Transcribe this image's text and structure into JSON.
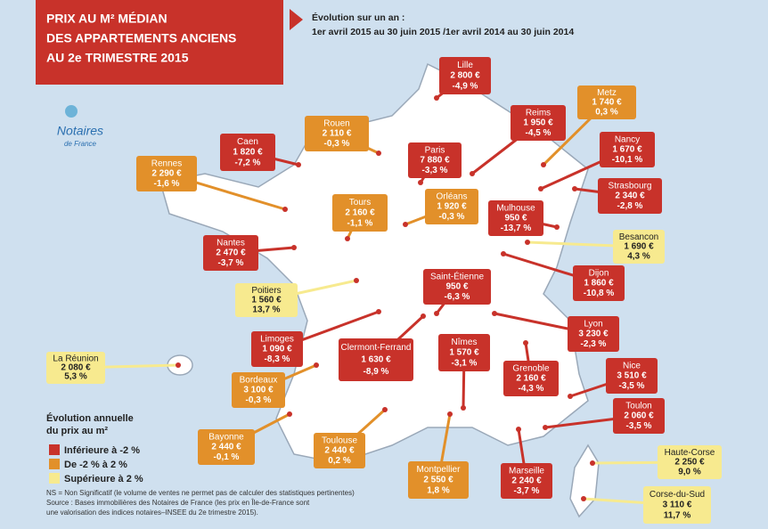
{
  "header": {
    "title_lines": [
      "PRIX AU M² MÉDIAN",
      "DES APPARTEMENTS ANCIENS",
      "AU 2e TRIMESTRE 2015"
    ],
    "subtitle_lines": [
      "Évolution sur un an :",
      "1er avril 2015 au 30 juin 2015 /1er avril 2014 au 30 juin 2014"
    ]
  },
  "logo": {
    "name": "Notaires",
    "tagline": "de France"
  },
  "cities": [
    {
      "name": "Lille",
      "price": "2 800 €",
      "change": "-4,9 %",
      "color": "#c8322a"
    },
    {
      "name": "Metz",
      "price": "1 740 €",
      "change": "0,3 %",
      "color": "#e2902a"
    },
    {
      "name": "Reims",
      "price": "1 950 €",
      "change": "-4,5 %",
      "color": "#c8322a"
    },
    {
      "name": "Rouen",
      "price": "2 110 €",
      "change": "-0,3 %",
      "color": "#e2902a"
    },
    {
      "name": "Caen",
      "price": "1 820 €",
      "change": "-7,2 %",
      "color": "#c8322a"
    },
    {
      "name": "Paris",
      "price": "7 880 €",
      "change": "-3,3 %",
      "color": "#c8322a"
    },
    {
      "name": "Nancy",
      "price": "1 670 €",
      "change": "-10,1 %",
      "color": "#c8322a"
    },
    {
      "name": "Rennes",
      "price": "2 290 €",
      "change": "-1,6 %",
      "color": "#e2902a"
    },
    {
      "name": "Strasbourg",
      "price": "2 340 €",
      "change": "-2,8 %",
      "color": "#c8322a"
    },
    {
      "name": "Tours",
      "price": "2 160 €",
      "change": "-1,1 %",
      "color": "#e2902a"
    },
    {
      "name": "Orléans",
      "price": "1 920 €",
      "change": "-0,3 %",
      "color": "#e2902a"
    },
    {
      "name": "Mulhouse",
      "price": "950 €",
      "change": "-13,7 %",
      "color": "#c8322a"
    },
    {
      "name": "Besancon",
      "price": "1 690 €",
      "change": "4,3 %",
      "color": "#f7ea8f"
    },
    {
      "name": "Nantes",
      "price": "2 470 €",
      "change": "-3,7 %",
      "color": "#c8322a"
    },
    {
      "name": "Dijon",
      "price": "1 860 €",
      "change": "-10,8 %",
      "color": "#c8322a"
    },
    {
      "name": "Poitiers",
      "price": "1 560 €",
      "change": "13,7 %",
      "color": "#f7ea8f"
    },
    {
      "name": "Saint-Étienne",
      "price": "950 €",
      "change": "-6,3 %",
      "color": "#c8322a"
    },
    {
      "name": "Lyon",
      "price": "3 230 €",
      "change": "-2,3 %",
      "color": "#c8322a"
    },
    {
      "name": "Limoges",
      "price": "1 090 €",
      "change": "-8,3 %",
      "color": "#c8322a"
    },
    {
      "name": "Clermont-Ferrand",
      "price": "1 630 €",
      "change": "-8,9 %",
      "color": "#c8322a"
    },
    {
      "name": "Nîmes",
      "price": "1 570 €",
      "change": "-3,1 %",
      "color": "#c8322a"
    },
    {
      "name": "La Réunion",
      "price": "2 080 €",
      "change": "5,3 %",
      "color": "#f7ea8f"
    },
    {
      "name": "Bordeaux",
      "price": "3 100 €",
      "change": "-0,3 %",
      "color": "#e2902a"
    },
    {
      "name": "Grenoble",
      "price": "2 160 €",
      "change": "-4,3 %",
      "color": "#c8322a"
    },
    {
      "name": "Nice",
      "price": "3 510 €",
      "change": "-3,5 %",
      "color": "#c8322a"
    },
    {
      "name": "Toulon",
      "price": "2 060 €",
      "change": "-3,5 %",
      "color": "#c8322a"
    },
    {
      "name": "Bayonne",
      "price": "2 440 €",
      "change": "-0,1 %",
      "color": "#e2902a"
    },
    {
      "name": "Toulouse",
      "price": "2 440 €",
      "change": "0,2 %",
      "color": "#e2902a"
    },
    {
      "name": "Montpellier",
      "price": "2 550 €",
      "change": "1,8 %",
      "color": "#e2902a"
    },
    {
      "name": "Marseille",
      "price": "2 240 €",
      "change": "-3,7 %",
      "color": "#c8322a"
    },
    {
      "name": "Haute-Corse",
      "price": "2 250 €",
      "change": "9,0 %",
      "color": "#f7ea8f"
    },
    {
      "name": "Corse-du-Sud",
      "price": "3 110 €",
      "change": "11,7 %",
      "color": "#f7ea8f"
    }
  ],
  "legend": {
    "title_lines": [
      "Évolution annuelle",
      "du prix au m²"
    ],
    "items": [
      {
        "label": "Inférieure à -2 %",
        "color": "#c8322a"
      },
      {
        "label": "De -2 % à 2 %",
        "color": "#e2902a"
      },
      {
        "label": "Supérieure à 2 %",
        "color": "#f7ea8f"
      }
    ]
  },
  "notes": [
    "NS = Non Significatif (le volume de ventes ne permet pas de calculer des statistiques pertinentes)",
    "Source : Bases immobilières des Notaires de France (les prix en Île-de-France sont",
    "une valorisation des indices notaires–INSEE du 2e trimestre 2015)."
  ]
}
